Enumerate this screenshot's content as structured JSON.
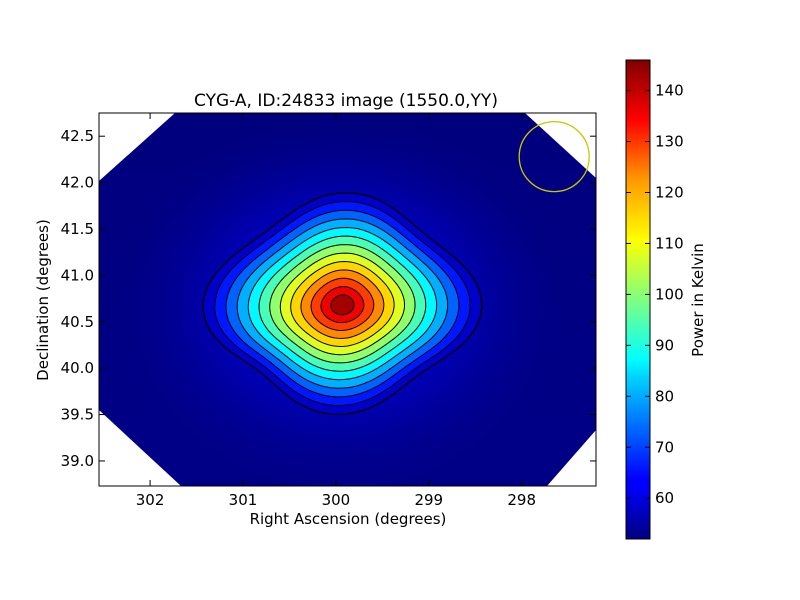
{
  "chart_data": {
    "type": "heatmap",
    "title": "CYG-A, ID:24833 image (1550.0,YY)",
    "xlabel": "Right Ascension (degrees)",
    "ylabel": "Declination (degrees)",
    "xlim": [
      302.55,
      297.2
    ],
    "ylim": [
      38.73,
      42.75
    ],
    "x_ticks": [
      302,
      301,
      300,
      299,
      298
    ],
    "x_tick_labels": [
      "302",
      "301",
      "300",
      "299",
      "298"
    ],
    "y_ticks": [
      39.0,
      39.5,
      40.0,
      40.5,
      41.0,
      41.5,
      42.0,
      42.5
    ],
    "y_tick_labels": [
      "39.0",
      "39.5",
      "40.0",
      "40.5",
      "41.0",
      "41.5",
      "42.0",
      "42.5"
    ],
    "colorbar": {
      "label": "Power in Kelvin",
      "colormap": "jet",
      "range": [
        52,
        146
      ],
      "ticks": [
        60,
        70,
        80,
        90,
        100,
        110,
        120,
        130,
        140
      ],
      "tick_labels": [
        "60",
        "70",
        "80",
        "90",
        "100",
        "110",
        "120",
        "130",
        "140"
      ]
    },
    "peak": {
      "ra": 299.93,
      "dec": 40.68,
      "value": 146
    },
    "background_level": 52,
    "contours_count": 13,
    "beam_marker": {
      "ra": 297.65,
      "dec": 42.28,
      "color": "#c8c800"
    },
    "masked_regions": "corners outside the observed field are white",
    "grid": false
  }
}
